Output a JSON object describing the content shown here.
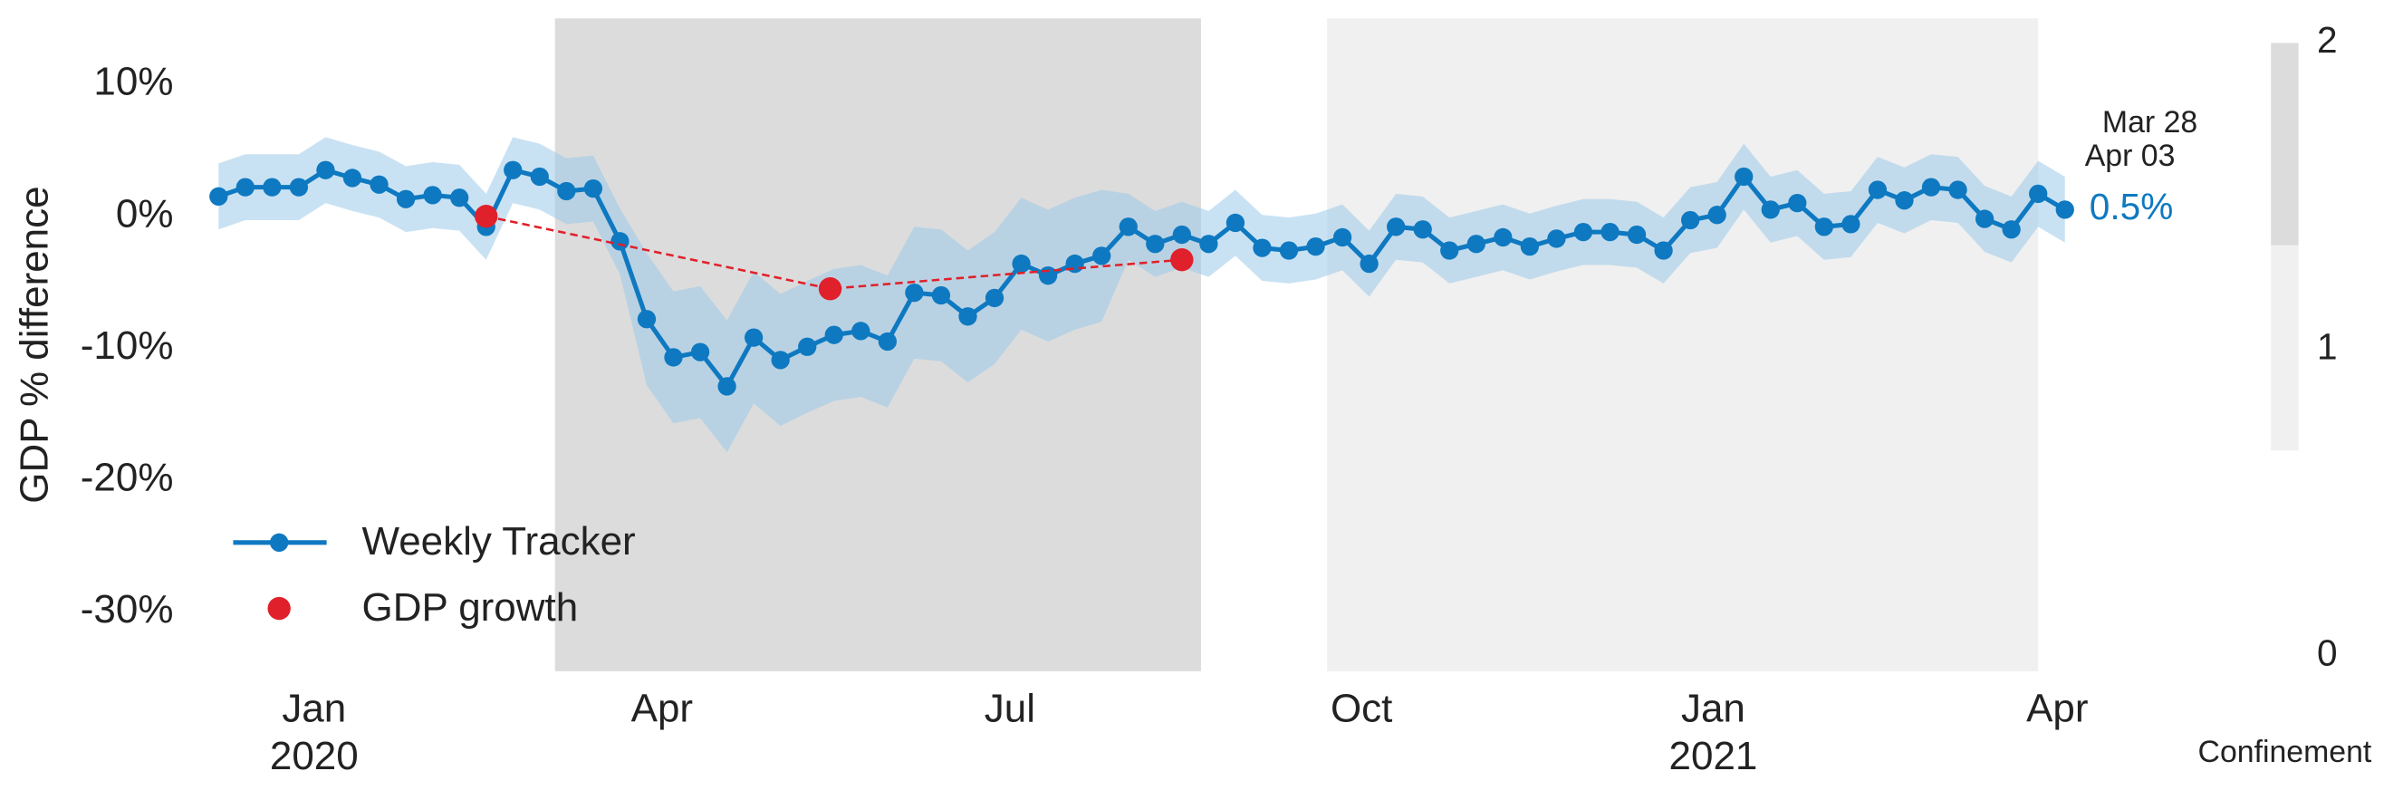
{
  "chart_data": {
    "type": "line",
    "ylabel": "GDP % difference",
    "xlim": [
      "2019-11-28",
      "2021-04-08"
    ],
    "xticks": [
      {
        "value": "2020-01-01",
        "label": "Jan",
        "year": "2020"
      },
      {
        "value": "2020-04-01",
        "label": "Apr"
      },
      {
        "value": "2020-07-01",
        "label": "Jul"
      },
      {
        "value": "2020-10-01",
        "label": "Oct"
      },
      {
        "value": "2021-01-01",
        "label": "Jan",
        "year": "2021"
      },
      {
        "value": "2021-04-01",
        "label": "Apr"
      }
    ],
    "ylim": [
      -34.5,
      15
    ],
    "yticks": [
      {
        "value": -30,
        "label": "-30%"
      },
      {
        "value": -20,
        "label": "-20%"
      },
      {
        "value": -10,
        "label": "-10%"
      },
      {
        "value": 0,
        "label": "0%"
      },
      {
        "value": 10,
        "label": "10%"
      }
    ],
    "legend": "lower left",
    "series": [
      {
        "name": "Weekly Tracker",
        "color": "#0e79c1",
        "band_color": "#9ccbea",
        "x": [
          "2019-12-07",
          "2019-12-14",
          "2019-12-21",
          "2019-12-28",
          "2020-01-04",
          "2020-01-11",
          "2020-01-18",
          "2020-01-25",
          "2020-02-01",
          "2020-02-08",
          "2020-02-15",
          "2020-02-22",
          "2020-02-29",
          "2020-03-07",
          "2020-03-14",
          "2020-03-21",
          "2020-03-28",
          "2020-04-04",
          "2020-04-11",
          "2020-04-18",
          "2020-04-25",
          "2020-05-02",
          "2020-05-09",
          "2020-05-16",
          "2020-05-23",
          "2020-05-30",
          "2020-06-06",
          "2020-06-13",
          "2020-06-20",
          "2020-06-27",
          "2020-07-04",
          "2020-07-11",
          "2020-07-18",
          "2020-07-25",
          "2020-08-01",
          "2020-08-08",
          "2020-08-15",
          "2020-08-22",
          "2020-08-29",
          "2020-09-05",
          "2020-09-12",
          "2020-09-19",
          "2020-09-26",
          "2020-10-03",
          "2020-10-10",
          "2020-10-17",
          "2020-10-24",
          "2020-10-31",
          "2020-11-07",
          "2020-11-14",
          "2020-11-21",
          "2020-11-28",
          "2020-12-05",
          "2020-12-12",
          "2020-12-19",
          "2020-12-26",
          "2021-01-02",
          "2021-01-09",
          "2021-01-16",
          "2021-01-23",
          "2021-01-30",
          "2021-02-06",
          "2021-02-13",
          "2021-02-20",
          "2021-02-27",
          "2021-03-06",
          "2021-03-13",
          "2021-03-20",
          "2021-03-27",
          "2021-04-03"
        ],
        "values": [
          1.5,
          2.2,
          2.2,
          2.2,
          3.5,
          2.9,
          2.4,
          1.3,
          1.6,
          1.4,
          -0.8,
          3.5,
          3.0,
          1.9,
          2.1,
          -1.9,
          -7.8,
          -10.7,
          -10.3,
          -12.9,
          -9.2,
          -10.9,
          -9.9,
          -9.0,
          -8.7,
          -9.5,
          -5.8,
          -6.0,
          -7.6,
          -6.2,
          -3.6,
          -4.5,
          -3.6,
          -3.0,
          -0.8,
          -2.1,
          -1.4,
          -2.1,
          -0.5,
          -2.4,
          -2.6,
          -2.3,
          -1.6,
          -3.6,
          -0.8,
          -1.0,
          -2.6,
          -2.1,
          -1.6,
          -2.3,
          -1.7,
          -1.2,
          -1.2,
          -1.4,
          -2.6,
          -0.3,
          0.1,
          3.0,
          0.5,
          1.0,
          -0.8,
          -0.6,
          2.0,
          1.2,
          2.2,
          2.0,
          -0.2,
          -1.0,
          1.7,
          0.5
        ],
        "lower": [
          -1.0,
          -0.3,
          -0.3,
          -0.3,
          1.0,
          0.4,
          -0.1,
          -1.2,
          -0.9,
          -1.1,
          -3.3,
          1.0,
          0.5,
          -0.6,
          -0.4,
          -4.4,
          -12.8,
          -15.7,
          -15.3,
          -17.9,
          -14.2,
          -15.9,
          -14.9,
          -14.0,
          -13.7,
          -14.5,
          -10.8,
          -11.0,
          -12.6,
          -11.2,
          -8.6,
          -9.5,
          -8.6,
          -8.0,
          -3.3,
          -4.6,
          -3.9,
          -4.6,
          -3.0,
          -4.9,
          -5.1,
          -4.8,
          -4.1,
          -6.1,
          -3.3,
          -3.5,
          -5.1,
          -4.6,
          -4.1,
          -4.8,
          -4.2,
          -3.7,
          -3.7,
          -3.9,
          -5.1,
          -2.8,
          -2.4,
          0.5,
          -2.0,
          -1.5,
          -3.3,
          -3.1,
          -0.5,
          -1.3,
          -0.3,
          -0.5,
          -2.7,
          -3.5,
          -0.8,
          -2.0
        ],
        "upper": [
          4.0,
          4.7,
          4.7,
          4.7,
          6.0,
          5.4,
          4.9,
          3.8,
          4.1,
          3.9,
          1.7,
          6.0,
          5.5,
          4.4,
          4.6,
          0.6,
          -2.8,
          -5.7,
          -5.3,
          -7.9,
          -4.2,
          -5.9,
          -4.9,
          -4.0,
          -3.7,
          -4.5,
          -0.8,
          -1.0,
          -2.6,
          -1.2,
          1.4,
          0.5,
          1.4,
          2.0,
          1.7,
          0.4,
          1.1,
          0.4,
          2.0,
          0.1,
          -0.1,
          0.2,
          0.9,
          -1.1,
          1.7,
          1.5,
          -0.1,
          0.4,
          0.9,
          0.2,
          0.8,
          1.3,
          1.3,
          1.1,
          -0.1,
          2.2,
          2.6,
          5.5,
          3.0,
          3.5,
          1.7,
          1.9,
          4.5,
          3.7,
          4.7,
          4.5,
          2.3,
          1.5,
          4.2,
          3.0
        ]
      },
      {
        "name": "GDP growth",
        "color": "#e0202a",
        "x": [
          "2020-02-15",
          "2020-05-15",
          "2020-08-15"
        ],
        "values": [
          0,
          -5.5,
          -3.3
        ]
      }
    ],
    "annotations": [
      {
        "text": "Mar 28"
      },
      {
        "text": "Apr 03"
      },
      {
        "text": "0.5%",
        "x": "2021-04-03",
        "y": 0.5,
        "color": "#0e79c1"
      }
    ],
    "periods": [
      {
        "start": "2020-03-04",
        "end": "2020-08-20",
        "level": 2
      },
      {
        "start": "2020-09-22",
        "end": "2021-03-27",
        "level": 1
      }
    ],
    "colorbar": {
      "label": "Confinement",
      "lim": [
        0,
        2
      ],
      "ticks": [
        0,
        1,
        2
      ],
      "levels": [
        {
          "from": 0.67,
          "to": 1.34,
          "level": 1,
          "color": "#f0f0f0"
        },
        {
          "from": 1.34,
          "to": 2,
          "level": 2,
          "color": "#dcdcdc"
        }
      ]
    }
  }
}
